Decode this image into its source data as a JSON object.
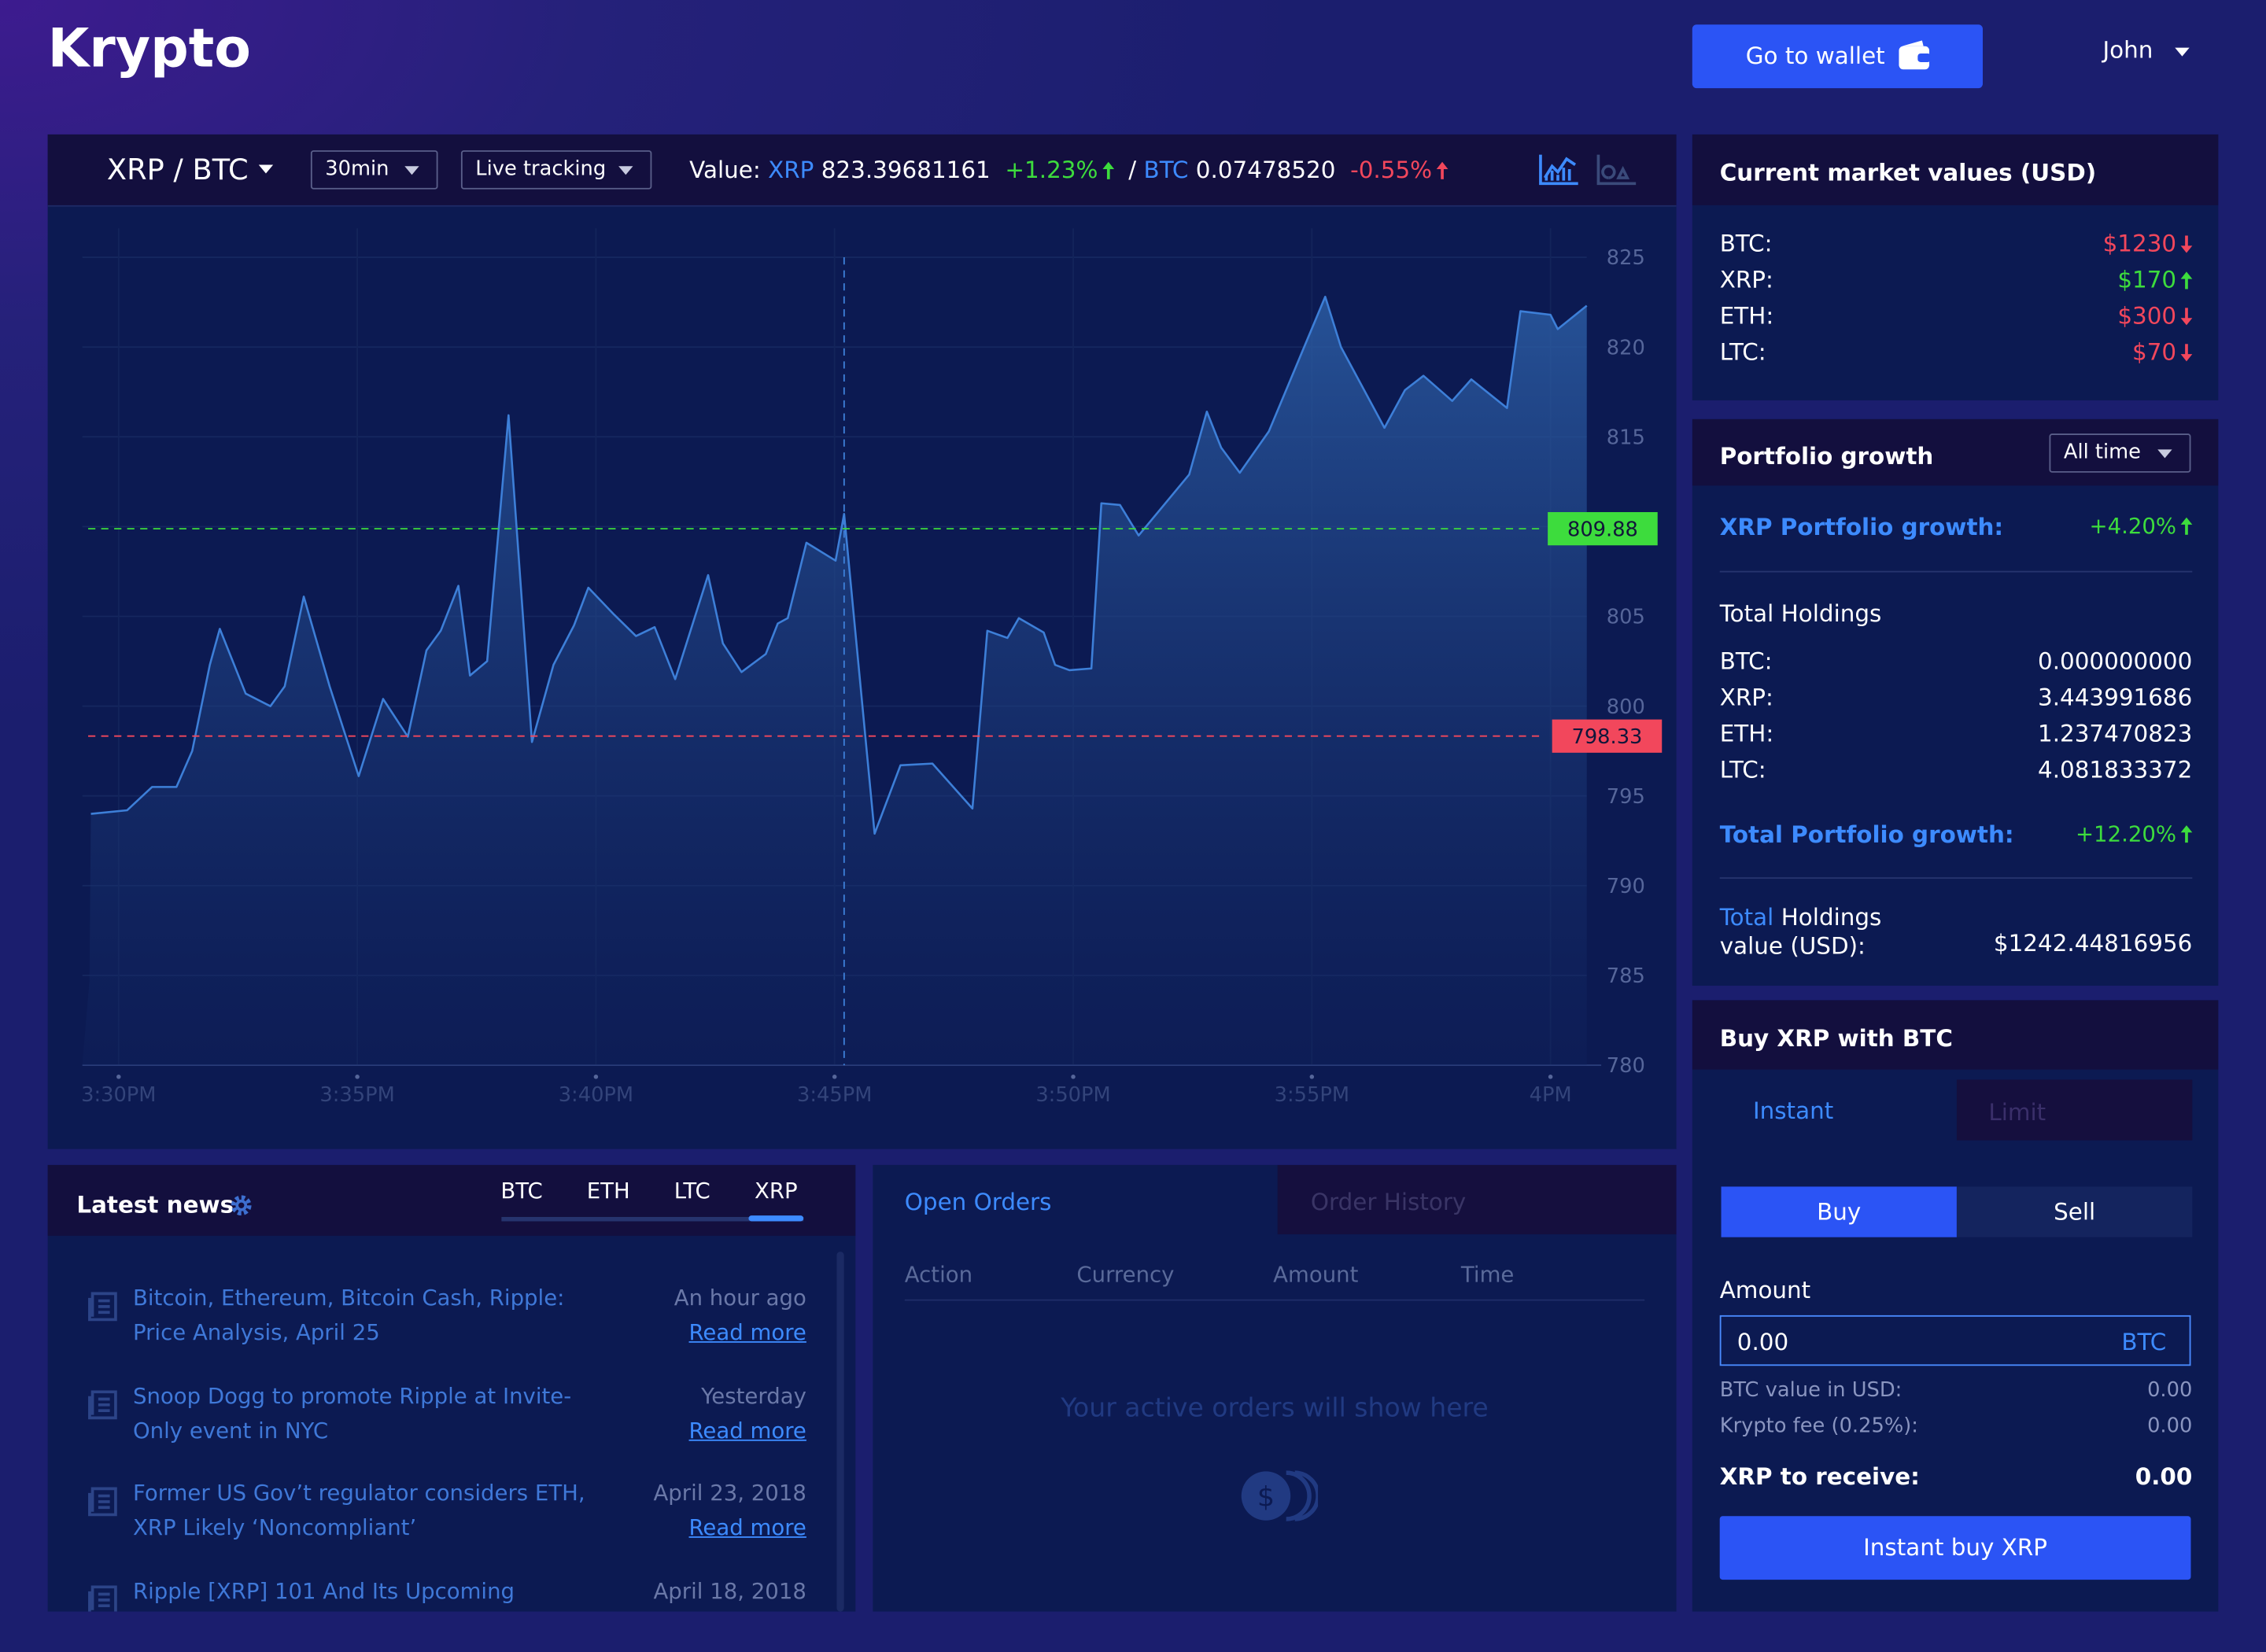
{
  "header": {
    "brand": "Krypto",
    "wallet_button": "Go to wallet",
    "user": "John"
  },
  "toolbar": {
    "pair": "XRP / BTC",
    "interval": "30min",
    "mode": "Live tracking",
    "value_label": "Value:",
    "xrp": {
      "symbol": "XRP",
      "value": "823.39681161",
      "change": "+1.23%",
      "trend": "up"
    },
    "separator": "/",
    "btc": {
      "symbol": "BTC",
      "value": "0.07478520",
      "change": "-0.55%",
      "trend": "up"
    }
  },
  "chart_data": {
    "type": "area",
    "color": "#3d7fd8",
    "x": [
      -0.58,
      0.18,
      0.7,
      1.21,
      1.54,
      1.91,
      2.12,
      2.66,
      3.18,
      3.48,
      3.88,
      4.42,
      5.03,
      5.54,
      6.06,
      6.45,
      6.75,
      7.12,
      7.36,
      7.72,
      8.17,
      8.66,
      9.11,
      9.54,
      9.84,
      10.38,
      10.84,
      11.23,
      11.66,
      12.35,
      12.66,
      13.05,
      13.56,
      13.81,
      14.02,
      14.41,
      15.02,
      15.2,
      15.84,
      16.38,
      17.05,
      17.89,
      18.2,
      18.62,
      18.86,
      19.38,
      19.62,
      19.92,
      20.38,
      20.59,
      20.98,
      21.37,
      22.43,
      22.8,
      23.1,
      23.49,
      24.1,
      25.28,
      25.61,
      26.52,
      26.95,
      27.34,
      27.94,
      28.34,
      29.09,
      29.37,
      30.0,
      30.15,
      30.76
    ],
    "values": [
      794.0,
      794.2,
      795.5,
      795.5,
      797.5,
      802.3,
      804.3,
      800.7,
      800.0,
      801.1,
      806.1,
      801.1,
      796.1,
      800.4,
      798.3,
      803.1,
      804.2,
      806.7,
      801.7,
      802.5,
      816.2,
      798.0,
      802.3,
      804.5,
      806.6,
      805.1,
      803.9,
      804.4,
      801.5,
      807.3,
      803.5,
      801.9,
      802.9,
      804.6,
      804.9,
      809.1,
      808.1,
      810.7,
      792.9,
      796.7,
      796.8,
      794.3,
      804.2,
      803.8,
      804.9,
      804.1,
      802.3,
      802.0,
      802.1,
      811.3,
      811.2,
      809.5,
      812.9,
      816.4,
      814.4,
      813.0,
      815.3,
      822.8,
      820.0,
      815.5,
      817.6,
      818.4,
      817.0,
      818.2,
      816.6,
      822.0,
      821.8,
      821.0,
      822.3
    ],
    "xlim": [
      -0.76,
      30.76
    ],
    "ylim": [
      780,
      825
    ],
    "xticks": [
      {
        "value": 0,
        "label": "3:30PM"
      },
      {
        "value": 5,
        "label": "3:35PM"
      },
      {
        "value": 10,
        "label": "3:40PM"
      },
      {
        "value": 15,
        "label": "3:45PM"
      },
      {
        "value": 20,
        "label": "3:50PM"
      },
      {
        "value": 25,
        "label": "3:55PM"
      },
      {
        "value": 30,
        "label": "4PM"
      }
    ],
    "yticks": [
      780,
      785,
      790,
      795,
      800,
      805,
      810,
      815,
      820,
      825
    ],
    "grid": true,
    "reference_lines": [
      {
        "value": 809.88,
        "color": "#3ddc3d"
      },
      {
        "value": 798.33,
        "color": "#f2475c"
      }
    ],
    "crosshair_x": 15.2
  },
  "market": {
    "title": "Current market values (USD)",
    "rows": [
      {
        "coin": "BTC:",
        "value": "$1230",
        "trend": "down"
      },
      {
        "coin": "XRP:",
        "value": "$170",
        "trend": "up"
      },
      {
        "coin": "ETH:",
        "value": "$300",
        "trend": "down"
      },
      {
        "coin": "LTC:",
        "value": "$70",
        "trend": "down"
      }
    ]
  },
  "portfolio": {
    "title": "Portfolio growth",
    "range": "All time",
    "xrp_growth_label": "XRP Portfolio growth:",
    "xrp_growth": "+4.20%",
    "holdings_title": "Total Holdings",
    "holdings": [
      {
        "coin": "BTC:",
        "amount": "0.000000000"
      },
      {
        "coin": "XRP:",
        "amount": "3.443991686"
      },
      {
        "coin": "ETH:",
        "amount": "1.237470823"
      },
      {
        "coin": "LTC:",
        "amount": "4.081833372"
      }
    ],
    "total_growth_label": "Total Portfolio growth:",
    "total_growth": "+12.20%",
    "value_label_a": "Total",
    "value_label_b": "Holdings value (USD):",
    "value": "$1242.44816956"
  },
  "buy": {
    "title": "Buy XRP with BTC",
    "tabs": [
      "Instant",
      "Limit"
    ],
    "sides": [
      "Buy",
      "Sell"
    ],
    "amount_label": "Amount",
    "amount": "0.00",
    "amount_unit": "BTC",
    "rows": [
      {
        "label": "BTC value in USD:",
        "value": "0.00"
      },
      {
        "label": "Krypto fee (0.25%):",
        "value": "0.00"
      }
    ],
    "receive_label": "XRP to receive:",
    "receive": "0.00",
    "button": "Instant buy XRP"
  },
  "news": {
    "title": "Latest news",
    "tabs": [
      "BTC",
      "ETH",
      "LTC",
      "XRP"
    ],
    "items": [
      {
        "headline": "Bitcoin, Ethereum, Bitcoin Cash, Ripple: Price Analysis, April 25",
        "time": "An hour ago",
        "link": "Read more"
      },
      {
        "headline": "Snoop Dogg to promote Ripple at Invite-Only event in NYC",
        "time": "Yesterday",
        "link": "Read more"
      },
      {
        "headline": "Former US Gov’t regulator considers ETH, XRP Likely ‘Noncompliant’",
        "time": "April 23, 2018",
        "link": "Read more"
      },
      {
        "headline": "Ripple [XRP] 101 And Its Upcoming",
        "time": "April 18, 2018"
      }
    ]
  },
  "orders": {
    "tabs": [
      "Open Orders",
      "Order History"
    ],
    "columns": [
      "Action",
      "Currency",
      "Amount",
      "Time"
    ],
    "empty": "Your active orders will show here"
  }
}
